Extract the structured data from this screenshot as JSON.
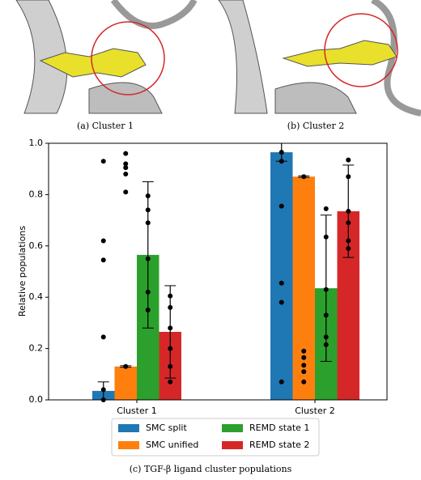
{
  "captions": {
    "a": "(a) Cluster 1",
    "b": "(b) Cluster 2",
    "c": "(c) TGF-β ligand cluster populations"
  },
  "chart_data": {
    "type": "bar",
    "ylabel": "Relative populations",
    "categories": [
      "Cluster 1",
      "Cluster 2"
    ],
    "ylim": [
      0,
      1
    ],
    "yticks": [
      {
        "value": 0,
        "label": "0.0"
      },
      0.2,
      0.4,
      0.6,
      0.8,
      {
        "value": 1,
        "label": "1.0"
      }
    ],
    "legend": "bottom",
    "series": [
      {
        "name": "SMC split",
        "color": "#1f77b4",
        "values": [
          0.035,
          0.965
        ],
        "errors": [
          0.035,
          0.035
        ],
        "points": [
          [
            0.93,
            0.62,
            0.545,
            0.245,
            0.04,
            0.0
          ],
          [
            0.965,
            0.93,
            0.755,
            0.455,
            0.38,
            0.07
          ]
        ]
      },
      {
        "name": "SMC unified",
        "color": "#ff7f0e",
        "values": [
          0.13,
          0.87
        ],
        "errors": [
          0.003,
          0.003
        ],
        "points": [
          [
            0.96,
            0.92,
            0.905,
            0.88,
            0.81,
            0.13
          ],
          [
            0.87,
            0.19,
            0.165,
            0.135,
            0.11,
            0.07
          ]
        ]
      },
      {
        "name": "REMD state 1",
        "color": "#2ca02c",
        "values": [
          0.565,
          0.435
        ],
        "errors": [
          0.285,
          0.285
        ],
        "points": [
          [
            0.795,
            0.74,
            0.69,
            0.55,
            0.42,
            0.35
          ],
          [
            0.745,
            0.635,
            0.43,
            0.33,
            0.245,
            0.215
          ]
        ]
      },
      {
        "name": "REMD state 2",
        "color": "#d62728",
        "values": [
          0.265,
          0.735
        ],
        "errors": [
          0.18,
          0.18
        ],
        "points": [
          [
            0.405,
            0.36,
            0.28,
            0.2,
            0.13,
            0.07
          ],
          [
            0.935,
            0.87,
            0.735,
            0.69,
            0.62,
            0.59
          ]
        ]
      }
    ]
  }
}
